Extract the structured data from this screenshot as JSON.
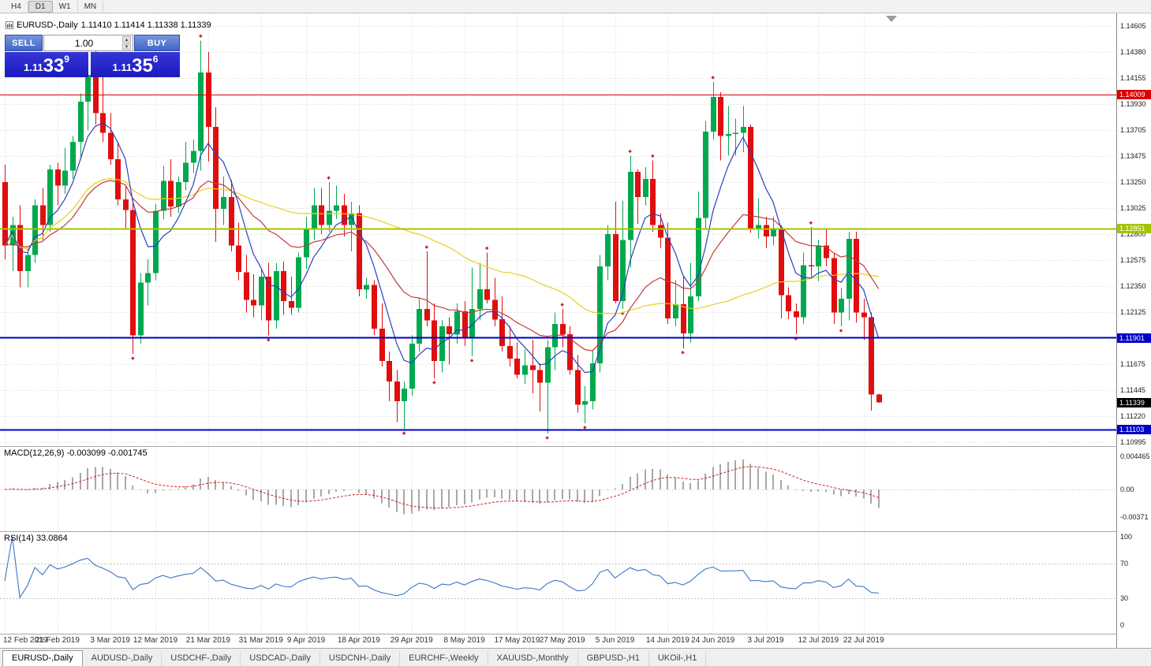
{
  "toolbar": {
    "timeframes": [
      {
        "label": "H4",
        "active": false
      },
      {
        "label": "D1",
        "active": true
      },
      {
        "label": "W1",
        "active": false
      },
      {
        "label": "MN",
        "active": false
      }
    ]
  },
  "chart": {
    "title_symbol": "EURUSD-,Daily",
    "title_quote": "1.11410 1.11414 1.11338 1.11339"
  },
  "trade_panel": {
    "sell_label": "SELL",
    "buy_label": "BUY",
    "volume": "1.00",
    "sell_price": {
      "base": "1.11",
      "big": "33",
      "sup": "9"
    },
    "buy_price": {
      "base": "1.11",
      "big": "35",
      "sup": "6"
    }
  },
  "chart_data": {
    "type": "candlestick",
    "symbol": "EURUSD",
    "timeframe": "Daily",
    "candle_up_color": "#00A94E",
    "candle_down_color": "#E00E0E",
    "grid_color": "#DCDCDC",
    "candles": [
      [
        1.1325,
        1.134,
        1.1258,
        1.127
      ],
      [
        1.127,
        1.1295,
        1.1248,
        1.1288
      ],
      [
        1.1288,
        1.1305,
        1.1234,
        1.1248
      ],
      [
        1.1248,
        1.1268,
        1.1234,
        1.1262
      ],
      [
        1.1262,
        1.131,
        1.1255,
        1.1305
      ],
      [
        1.1305,
        1.132,
        1.1275,
        1.1288
      ],
      [
        1.1288,
        1.134,
        1.1282,
        1.1336
      ],
      [
        1.1336,
        1.1342,
        1.1305,
        1.1322
      ],
      [
        1.1322,
        1.1355,
        1.1315,
        1.1335
      ],
      [
        1.1335,
        1.1365,
        1.1328,
        1.136
      ],
      [
        1.136,
        1.1402,
        1.1345,
        1.1395
      ],
      [
        1.1395,
        1.1425,
        1.137,
        1.1418
      ],
      [
        1.1418,
        1.1448,
        1.1375,
        1.1385
      ],
      [
        1.1385,
        1.142,
        1.136,
        1.1368
      ],
      [
        1.1368,
        1.1385,
        1.134,
        1.1345
      ],
      [
        1.1345,
        1.136,
        1.1305,
        1.131
      ],
      [
        1.131,
        1.1322,
        1.1285,
        1.1301
      ],
      [
        1.1301,
        1.131,
        1.1176,
        1.1192
      ],
      [
        1.1192,
        1.1246,
        1.1185,
        1.1238
      ],
      [
        1.1238,
        1.1258,
        1.1218,
        1.1246
      ],
      [
        1.1246,
        1.1306,
        1.124,
        1.13
      ],
      [
        1.13,
        1.1339,
        1.1293,
        1.1326
      ],
      [
        1.1326,
        1.1345,
        1.1295,
        1.1304
      ],
      [
        1.1304,
        1.133,
        1.1298,
        1.1325
      ],
      [
        1.1325,
        1.136,
        1.1318,
        1.1342
      ],
      [
        1.1342,
        1.1362,
        1.1333,
        1.1352
      ],
      [
        1.1352,
        1.1448,
        1.1335,
        1.142
      ],
      [
        1.142,
        1.1438,
        1.1343,
        1.1373
      ],
      [
        1.1373,
        1.139,
        1.1273,
        1.1302
      ],
      [
        1.1302,
        1.133,
        1.1288,
        1.1312
      ],
      [
        1.1312,
        1.1327,
        1.1265,
        1.127
      ],
      [
        1.127,
        1.129,
        1.124,
        1.1247
      ],
      [
        1.1247,
        1.1262,
        1.1212,
        1.1223
      ],
      [
        1.1223,
        1.1245,
        1.1208,
        1.1218
      ],
      [
        1.1218,
        1.125,
        1.1205,
        1.1243
      ],
      [
        1.1243,
        1.1255,
        1.1192,
        1.1205
      ],
      [
        1.1205,
        1.1255,
        1.1198,
        1.1248
      ],
      [
        1.1248,
        1.1256,
        1.121,
        1.1222
      ],
      [
        1.1222,
        1.1243,
        1.121,
        1.1216
      ],
      [
        1.1216,
        1.1264,
        1.1212,
        1.126
      ],
      [
        1.126,
        1.1295,
        1.125,
        1.1285
      ],
      [
        1.1285,
        1.132,
        1.1275,
        1.1305
      ],
      [
        1.1305,
        1.132,
        1.128,
        1.1288
      ],
      [
        1.1288,
        1.1325,
        1.1282,
        1.13
      ],
      [
        1.13,
        1.1322,
        1.1293,
        1.1305
      ],
      [
        1.1305,
        1.1315,
        1.1278,
        1.1288
      ],
      [
        1.1288,
        1.1308,
        1.1265,
        1.1298
      ],
      [
        1.1298,
        1.1305,
        1.1226,
        1.1232
      ],
      [
        1.1232,
        1.1242,
        1.1224,
        1.1236
      ],
      [
        1.1236,
        1.124,
        1.1192,
        1.1198
      ],
      [
        1.1198,
        1.122,
        1.1165,
        1.117
      ],
      [
        1.117,
        1.1178,
        1.1135,
        1.1152
      ],
      [
        1.1152,
        1.1162,
        1.1117,
        1.1135
      ],
      [
        1.1135,
        1.1152,
        1.1111,
        1.1146
      ],
      [
        1.1146,
        1.1192,
        1.114,
        1.1185
      ],
      [
        1.1185,
        1.1225,
        1.1178,
        1.1215
      ],
      [
        1.1215,
        1.1265,
        1.12,
        1.1205
      ],
      [
        1.1205,
        1.122,
        1.1155,
        1.117
      ],
      [
        1.117,
        1.1205,
        1.116,
        1.12
      ],
      [
        1.12,
        1.1208,
        1.1167,
        1.1193
      ],
      [
        1.1193,
        1.122,
        1.1185,
        1.1213
      ],
      [
        1.1213,
        1.1222,
        1.1183,
        1.119
      ],
      [
        1.119,
        1.1251,
        1.1174,
        1.1215
      ],
      [
        1.1215,
        1.1255,
        1.1205,
        1.1232
      ],
      [
        1.1232,
        1.1264,
        1.122,
        1.1223
      ],
      [
        1.1223,
        1.1242,
        1.12,
        1.1206
      ],
      [
        1.1206,
        1.1226,
        1.1178,
        1.1183
      ],
      [
        1.1183,
        1.12,
        1.1165,
        1.1172
      ],
      [
        1.1172,
        1.1186,
        1.1155,
        1.1158
      ],
      [
        1.1158,
        1.118,
        1.115,
        1.1166
      ],
      [
        1.1166,
        1.1188,
        1.1142,
        1.1162
      ],
      [
        1.1162,
        1.1168,
        1.1126,
        1.1151
      ],
      [
        1.1151,
        1.1188,
        1.1107,
        1.1182
      ],
      [
        1.1182,
        1.1212,
        1.1162,
        1.1202
      ],
      [
        1.1202,
        1.1215,
        1.1182,
        1.1193
      ],
      [
        1.1193,
        1.12,
        1.1158,
        1.1162
      ],
      [
        1.1162,
        1.1175,
        1.1125,
        1.1132
      ],
      [
        1.1132,
        1.1148,
        1.1116,
        1.1135
      ],
      [
        1.1135,
        1.118,
        1.1128,
        1.1168
      ],
      [
        1.1168,
        1.1262,
        1.116,
        1.1252
      ],
      [
        1.1252,
        1.1288,
        1.124,
        1.128
      ],
      [
        1.128,
        1.1308,
        1.122,
        1.1222
      ],
      [
        1.1222,
        1.1309,
        1.1215,
        1.1275
      ],
      [
        1.1275,
        1.1348,
        1.1251,
        1.1334
      ],
      [
        1.1334,
        1.1336,
        1.1289,
        1.1312
      ],
      [
        1.1312,
        1.1338,
        1.1305,
        1.1328
      ],
      [
        1.1328,
        1.1344,
        1.1282,
        1.1288
      ],
      [
        1.1288,
        1.1298,
        1.1268,
        1.1277
      ],
      [
        1.1277,
        1.129,
        1.1202,
        1.1207
      ],
      [
        1.1207,
        1.124,
        1.12,
        1.1219
      ],
      [
        1.1219,
        1.1243,
        1.1181,
        1.1194
      ],
      [
        1.1194,
        1.1255,
        1.1186,
        1.1226
      ],
      [
        1.1226,
        1.1317,
        1.1222,
        1.1294
      ],
      [
        1.1294,
        1.1378,
        1.1285,
        1.1369
      ],
      [
        1.1369,
        1.1412,
        1.1362,
        1.1399
      ],
      [
        1.1399,
        1.1403,
        1.1344,
        1.1365
      ],
      [
        1.1365,
        1.1391,
        1.1348,
        1.1367
      ],
      [
        1.1367,
        1.138,
        1.1348,
        1.1368
      ],
      [
        1.1368,
        1.1391,
        1.1351,
        1.1373
      ],
      [
        1.1373,
        1.1375,
        1.1281,
        1.1285
      ],
      [
        1.1285,
        1.1311,
        1.1276,
        1.1288
      ],
      [
        1.1288,
        1.1295,
        1.1268,
        1.1278
      ],
      [
        1.1278,
        1.1295,
        1.127,
        1.1285
      ],
      [
        1.1285,
        1.1288,
        1.1207,
        1.1227
      ],
      [
        1.1227,
        1.1234,
        1.1206,
        1.1213
      ],
      [
        1.1213,
        1.122,
        1.1193,
        1.1208
      ],
      [
        1.1208,
        1.1264,
        1.1202,
        1.1253
      ],
      [
        1.1253,
        1.1286,
        1.1243,
        1.1252
      ],
      [
        1.1252,
        1.1275,
        1.1239,
        1.127
      ],
      [
        1.127,
        1.1285,
        1.1252,
        1.1259
      ],
      [
        1.1259,
        1.1263,
        1.1202,
        1.1212
      ],
      [
        1.1212,
        1.1233,
        1.12,
        1.1224
      ],
      [
        1.1224,
        1.1282,
        1.1205,
        1.1276
      ],
      [
        1.1276,
        1.1282,
        1.1203,
        1.1212
      ],
      [
        1.1212,
        1.1224,
        1.1188,
        1.1208
      ],
      [
        1.1208,
        1.1212,
        1.1127,
        1.1141
      ],
      [
        1.1141,
        1.11414,
        1.11338,
        1.11339
      ]
    ],
    "x_labels": [
      "12 Feb 2019",
      "21 Feb 2019",
      "3 Mar 2019",
      "12 Mar 2019",
      "21 Mar 2019",
      "31 Mar 2019",
      "9 Apr 2019",
      "18 Apr 2019",
      "29 Apr 2019",
      "8 May 2019",
      "17 May 2019",
      "27 May 2019",
      "5 Jun 2019",
      "14 Jun 2019",
      "24 Jun 2019",
      "3 Jul 2019",
      "12 Jul 2019",
      "22 Jul 2019"
    ],
    "x_label_indices": [
      0,
      7,
      14,
      20,
      27,
      34,
      40,
      47,
      54,
      61,
      68,
      74,
      81,
      88,
      94,
      101,
      108,
      114
    ],
    "y_ticks": [
      "1.14605",
      "1.14380",
      "1.14155",
      "1.13930",
      "1.13705",
      "1.13475",
      "1.13250",
      "1.13025",
      "1.12800",
      "1.12575",
      "1.12350",
      "1.12125",
      "1.11900",
      "1.11675",
      "1.11445",
      "1.11220",
      "1.10995"
    ],
    "hlines": [
      {
        "price": 1.14009,
        "label": "1.14009",
        "color": "#DF0000",
        "width": 1
      },
      {
        "price": 1.12851,
        "label": "1.12851",
        "color": "#A4C400",
        "width": 2
      },
      {
        "price": 1.11901,
        "label": "1.11901",
        "color": "#0000C8",
        "width": 2
      },
      {
        "price": 1.11103,
        "label": "1.11103",
        "color": "#0000C8",
        "width": 2
      }
    ],
    "current_price": {
      "value": 1.11339,
      "label": "1.11339",
      "color": "#000000"
    },
    "moving_averages": [
      {
        "type": "lwma",
        "period": 8,
        "color": "#2840C0"
      },
      {
        "type": "ema",
        "period": 21,
        "color": "#C23B3B"
      },
      {
        "type": "sma",
        "period": 50,
        "color": "#E8CF1E"
      }
    ],
    "macd": {
      "label": "MACD(12,26,9)",
      "values_text": "-0.003099 -0.001745",
      "fast": 12,
      "slow": 26,
      "signal": 9,
      "histogram_color": "#A8A8A8",
      "signal_color": "#D02020",
      "scale_ticks": [
        {
          "label": "0.004465",
          "value": 0.004465
        },
        {
          "label": "0.00",
          "value": 0
        },
        {
          "label": "-0.00371",
          "value": -0.00371
        }
      ]
    },
    "rsi": {
      "label": "RSI(14)",
      "value_text": "33.0864",
      "period": 14,
      "color": "#3A76C8",
      "levels": [
        70,
        30
      ],
      "scale_ticks": [
        {
          "label": "100",
          "value": 100
        },
        {
          "label": "70",
          "value": 70
        },
        {
          "label": "30",
          "value": 30
        },
        {
          "label": "0",
          "value": 0
        }
      ]
    }
  },
  "bottom_tabs": {
    "active_index": 0,
    "tabs": [
      "EURUSD-,Daily",
      "AUDUSD-,Daily",
      "USDCHF-,Daily",
      "USDCAD-,Daily",
      "USDCNH-,Daily",
      "EURCHF-,Weekly",
      "XAUUSD-,Monthly",
      "GBPUSD-,H1",
      "UKOil-,H1"
    ]
  }
}
